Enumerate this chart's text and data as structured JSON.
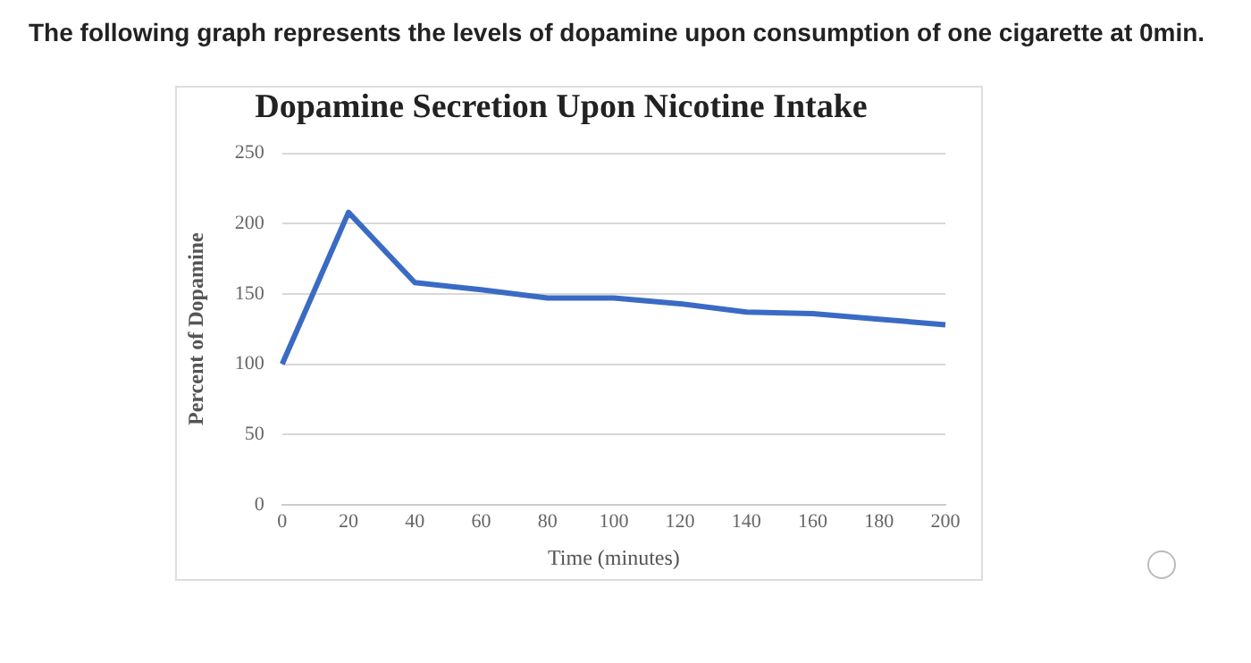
{
  "chart_data": {
    "type": "line",
    "title": "Dopamine Secretion Upon Nicotine Intake",
    "xlabel": "Time (minutes)",
    "ylabel": "Percent of Dopamine",
    "annotations": [
      "The following graph represents the levels of dopamine upon consumption of one cigarette at 0min."
    ],
    "categories": [
      "0",
      "20",
      "40",
      "60",
      "80",
      "100",
      "120",
      "140",
      "160",
      "180",
      "200"
    ],
    "series": [
      {
        "color": "#3a6bc4",
        "values": [
          100,
          208,
          158,
          153,
          147,
          147,
          143,
          137,
          136,
          132,
          128
        ]
      }
    ],
    "ylim": [
      0,
      250
    ],
    "yticks": [
      0,
      50,
      100,
      150,
      200,
      250
    ],
    "grid": "y",
    "legend": false,
    "marker": "none",
    "line_style": "solid"
  }
}
